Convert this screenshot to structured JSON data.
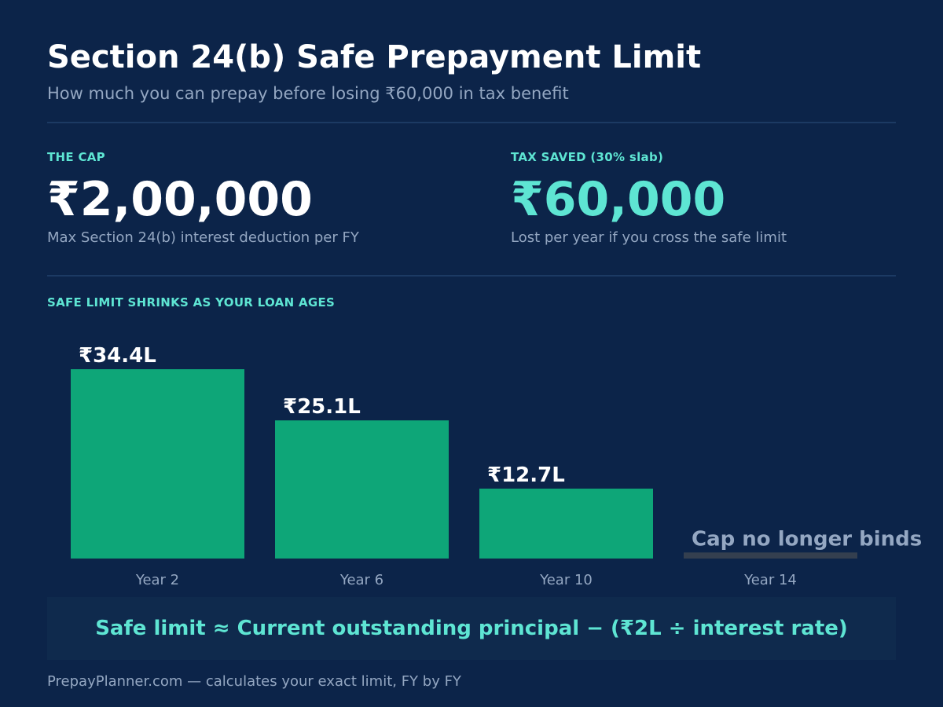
{
  "header": {
    "title": "Section 24(b) Safe Prepayment Limit",
    "subtitle": "How much you can prepay before losing ₹60,000 in tax benefit"
  },
  "stats": {
    "cap": {
      "label": "THE CAP",
      "value": "₹2,00,000",
      "desc": "Max Section 24(b) interest deduction per FY"
    },
    "tax_saved": {
      "label": "TAX SAVED (30% slab)",
      "value": "₹60,000",
      "desc": "Lost per year if you cross the safe limit"
    }
  },
  "chart_section_label": "SAFE LIMIT SHRINKS AS YOUR LOAN AGES",
  "chart_data": {
    "type": "bar",
    "title": "SAFE LIMIT SHRINKS AS YOUR LOAN AGES",
    "xlabel": "",
    "ylabel": "",
    "unit": "₹ lakh",
    "categories": [
      "Year 2",
      "Year 6",
      "Year 10",
      "Year 14"
    ],
    "values": [
      34.4,
      25.1,
      12.7,
      1.1
    ],
    "data_labels": [
      "₹34.4L",
      "₹25.1L",
      "₹12.7L",
      "Cap no longer binds"
    ],
    "ylim": [
      0,
      34.4
    ],
    "grid": false,
    "colors": {
      "active": "#0ea678",
      "inactive": "#343f4f",
      "label": "#ffffff",
      "inactive_label": "#94a7c2",
      "tick": "#94a7c2"
    }
  },
  "formula": "Safe limit ≈ Current outstanding principal − (₹2L ÷ interest rate)",
  "footer": "PrepayPlanner.com — calculates your exact limit, FY by FY"
}
